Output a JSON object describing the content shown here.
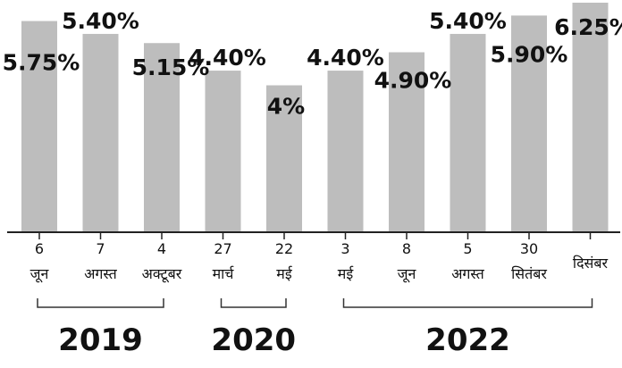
{
  "chart_data": {
    "type": "bar",
    "categories": [
      [
        "6",
        "जून"
      ],
      [
        "7",
        "अगस्त"
      ],
      [
        "4",
        "अक्टूबर"
      ],
      [
        "27",
        "मार्च"
      ],
      [
        "22",
        "मई"
      ],
      [
        "3",
        "मई"
      ],
      [
        "8",
        "जून"
      ],
      [
        "5",
        "अगस्त"
      ],
      [
        "30",
        "सितंबर"
      ],
      [
        "",
        "दिसंबर"
      ]
    ],
    "values": [
      5.75,
      5.4,
      5.15,
      4.4,
      4.0,
      4.4,
      4.9,
      5.4,
      5.9,
      6.25
    ],
    "data_labels": [
      "5.75%",
      "5.40%",
      "5.15%",
      "4.40%",
      "4%",
      "4.40%",
      "4.90%",
      "5.40%",
      "5.90%",
      "6.25%"
    ],
    "year_groups": [
      {
        "label": "2019",
        "first": 0,
        "last": 2
      },
      {
        "label": "2020",
        "first": 3,
        "last": 4
      },
      {
        "label": "2022",
        "first": 5,
        "last": 9
      }
    ],
    "bar_color": "#bdbdbd"
  }
}
